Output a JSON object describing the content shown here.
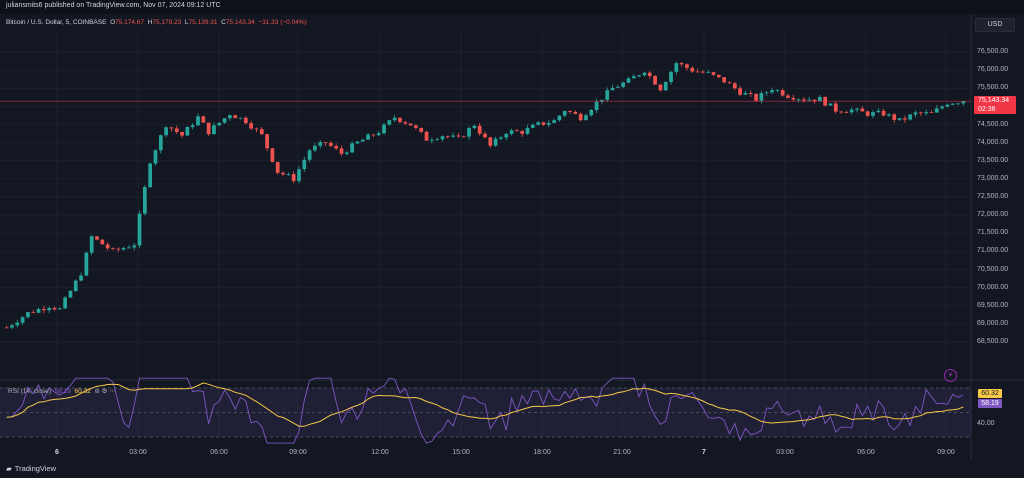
{
  "header": {
    "publisher_text": "juliansmits6 published on TradingView.com, Nov 07, 2024 09:12 UTC"
  },
  "legend": {
    "symbol": "Bitcoin / U.S. Dollar, 5, COINBASE",
    "open_label": "O",
    "open": "75,174.67",
    "high_label": "H",
    "high": "75,179.23",
    "low_label": "L",
    "low": "75,139.31",
    "close_label": "C",
    "close": "75,143.34",
    "change": "−31.33 (−0.04%)"
  },
  "currency_button": "USD",
  "price_axis": [
    "76,500.00",
    "76,000.00",
    "75,500.00",
    "75,000.00",
    "74,500.00",
    "74,000.00",
    "73,500.00",
    "73,000.00",
    "72,500.00",
    "72,000.00",
    "71,500.00",
    "71,000.00",
    "70,500.00",
    "70,000.00",
    "69,500.00",
    "69,000.00",
    "68,500.00"
  ],
  "last_price": {
    "price": "75,143.34",
    "countdown": "02:36"
  },
  "rsi": {
    "legend": "RSI (14, close)",
    "rsi_value": "58.19",
    "ma_value": "60.32",
    "axis_label": "40.00",
    "tag_ma": "60.32",
    "tag_rsi": "58.19"
  },
  "time_axis": [
    {
      "label": "6",
      "bold": true
    },
    {
      "label": "03:00",
      "bold": false
    },
    {
      "label": "06:00",
      "bold": false
    },
    {
      "label": "09:00",
      "bold": false
    },
    {
      "label": "12:00",
      "bold": false
    },
    {
      "label": "15:00",
      "bold": false
    },
    {
      "label": "18:00",
      "bold": false
    },
    {
      "label": "21:00",
      "bold": false
    },
    {
      "label": "7",
      "bold": true
    },
    {
      "label": "03:00",
      "bold": false
    },
    {
      "label": "06:00",
      "bold": false
    },
    {
      "label": "09:00",
      "bold": false
    }
  ],
  "brand": "TradingView",
  "colors": {
    "up": "#26a69a",
    "down": "#ef5350",
    "rsi": "#7e57c2",
    "rsi_ma": "#f7c948",
    "price_line": "#f23645"
  },
  "chart_data": {
    "type": "candlestick",
    "interval": "5",
    "price_range": [
      68500,
      76500
    ],
    "last_close": 75143.34,
    "rsi_range_note": "RSI band 30-70 shown",
    "waypoints": [
      [
        0,
        68900
      ],
      [
        4,
        69300
      ],
      [
        8,
        69500
      ],
      [
        10,
        69400
      ],
      [
        14,
        70400
      ],
      [
        16,
        71400
      ],
      [
        20,
        71000
      ],
      [
        24,
        71200
      ],
      [
        27,
        73500
      ],
      [
        30,
        74500
      ],
      [
        33,
        74200
      ],
      [
        36,
        74700
      ],
      [
        38,
        74300
      ],
      [
        42,
        74800
      ],
      [
        45,
        74600
      ],
      [
        48,
        74200
      ],
      [
        51,
        73200
      ],
      [
        54,
        73000
      ],
      [
        57,
        73800
      ],
      [
        60,
        74000
      ],
      [
        63,
        73700
      ],
      [
        66,
        74000
      ],
      [
        70,
        74300
      ],
      [
        73,
        74700
      ],
      [
        76,
        74500
      ],
      [
        79,
        74100
      ],
      [
        82,
        74200
      ],
      [
        85,
        74100
      ],
      [
        88,
        74500
      ],
      [
        91,
        73900
      ],
      [
        94,
        74300
      ],
      [
        97,
        74300
      ],
      [
        100,
        74500
      ],
      [
        103,
        74600
      ],
      [
        105,
        74900
      ],
      [
        108,
        74700
      ],
      [
        111,
        75100
      ],
      [
        114,
        75500
      ],
      [
        117,
        75700
      ],
      [
        120,
        76000
      ],
      [
        123,
        75500
      ],
      [
        126,
        76200
      ],
      [
        129,
        76000
      ],
      [
        132,
        75900
      ],
      [
        135,
        75700
      ],
      [
        138,
        75400
      ],
      [
        141,
        75200
      ],
      [
        144,
        75500
      ],
      [
        147,
        75300
      ],
      [
        150,
        75200
      ],
      [
        153,
        75200
      ],
      [
        156,
        74900
      ],
      [
        159,
        74900
      ],
      [
        162,
        74800
      ],
      [
        165,
        74800
      ],
      [
        168,
        74600
      ],
      [
        171,
        74800
      ],
      [
        174,
        74800
      ],
      [
        177,
        75100
      ],
      [
        180,
        75150
      ]
    ]
  }
}
